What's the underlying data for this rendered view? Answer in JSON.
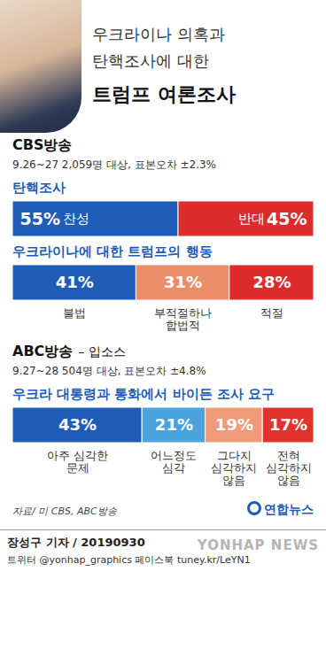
{
  "subtitle": "우크라이나 의혹과\n탄핵조사에 대한",
  "title": "트럼프 여론조사",
  "source": "자료/ 미 CBS, ABC방송",
  "logo": "연합뉴스",
  "credit": "장성구 기자 / 20190930",
  "social": "트위터 @yonhap_graphics  페이스북 tuney.kr/LeYN1",
  "watermark": "YONHAP NEWS",
  "chart_data": [
    {
      "type": "bar",
      "orientation": "horizontal",
      "stacked": true,
      "data_labels": true,
      "tick_labels": false,
      "annotations": [
        "CBS방송",
        "9.26~27  2,059명 대상, 표본오차 ±2.3%"
      ],
      "title": "탄핵조사",
      "categories": [
        "찬성",
        "반대"
      ],
      "values": [
        55,
        45
      ],
      "value_labels": [
        "55%",
        "45%"
      ],
      "colors": [
        "#1f5cb8",
        "#dd2c2c"
      ],
      "xlim": [
        0,
        100
      ]
    },
    {
      "type": "bar",
      "orientation": "horizontal",
      "stacked": true,
      "data_labels": true,
      "tick_labels": false,
      "title": "우크라이나에 대한 트럼프의 행동",
      "categories": [
        "불법",
        "부적절하나\n합법적",
        "적절"
      ],
      "values": [
        41,
        31,
        28
      ],
      "value_labels": [
        "41%",
        "31%",
        "28%"
      ],
      "colors": [
        "#1f5cb8",
        "#e98e68",
        "#dd2c2c"
      ],
      "xlim": [
        0,
        100
      ]
    },
    {
      "type": "bar",
      "orientation": "horizontal",
      "stacked": true,
      "data_labels": true,
      "tick_labels": false,
      "annotations": [
        "ABC방송",
        "– 입소스",
        "9.27~28  504명 대상, 표본오차 ±4.8%"
      ],
      "title": "우크라 대통령과 통화에서 바이든 조사 요구",
      "categories": [
        "아주 심각한\n문제",
        "어느정도\n심각",
        "그다지\n심각하지\n않음",
        "전혀\n심각하지\n않음"
      ],
      "values": [
        43,
        21,
        19,
        17
      ],
      "value_labels": [
        "43%",
        "21%",
        "19%",
        "17%"
      ],
      "colors": [
        "#1f5cb8",
        "#4ba3de",
        "#f09a7a",
        "#e2322f"
      ],
      "xlim": [
        0,
        100
      ]
    }
  ]
}
